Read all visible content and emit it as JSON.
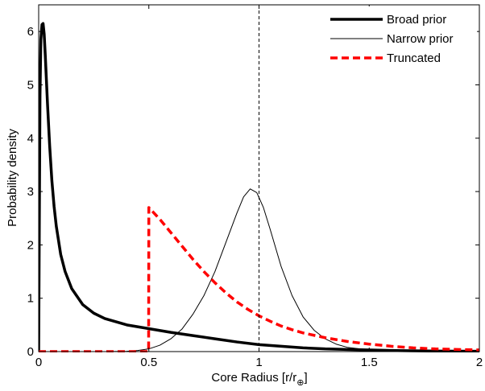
{
  "chart_data": {
    "type": "line",
    "title": "",
    "xlabel": "Core Radius [r/r",
    "xlabel_sub": "⊕",
    "xlabel_close": "]",
    "ylabel": "Probability density",
    "xlim": [
      0,
      2
    ],
    "ylim": [
      0,
      6.5
    ],
    "xticks": [
      0,
      0.5,
      1,
      1.5,
      2
    ],
    "xtick_labels": [
      "0",
      "0.5",
      "1",
      "1.5",
      "2"
    ],
    "yticks": [
      0,
      1,
      2,
      3,
      4,
      5,
      6
    ],
    "ytick_labels": [
      "0",
      "1",
      "2",
      "3",
      "4",
      "5",
      "6"
    ],
    "grid": false,
    "legend_position": "top-right",
    "reference_line": {
      "x": 1,
      "style": "dashed",
      "color": "#000000"
    },
    "series": [
      {
        "name": "Broad prior",
        "color": "#000000",
        "style": "solid-thick",
        "x": [
          0,
          0.003,
          0.006,
          0.01,
          0.015,
          0.02,
          0.025,
          0.03,
          0.035,
          0.04,
          0.05,
          0.06,
          0.07,
          0.08,
          0.1,
          0.12,
          0.15,
          0.2,
          0.25,
          0.3,
          0.4,
          0.5,
          0.6,
          0.7,
          0.8,
          0.9,
          1.0,
          1.1,
          1.2,
          1.3,
          1.4,
          1.5,
          1.6,
          1.8,
          2.0
        ],
        "y": [
          0,
          2.5,
          4.8,
          5.85,
          6.13,
          6.15,
          5.95,
          5.55,
          5.1,
          4.65,
          3.85,
          3.2,
          2.72,
          2.35,
          1.82,
          1.5,
          1.18,
          0.88,
          0.72,
          0.62,
          0.5,
          0.43,
          0.36,
          0.3,
          0.24,
          0.18,
          0.13,
          0.1,
          0.07,
          0.05,
          0.04,
          0.03,
          0.02,
          0.01,
          0.005
        ]
      },
      {
        "name": "Narrow prior",
        "color": "#000000",
        "style": "solid-thin",
        "x": [
          0,
          0.3,
          0.4,
          0.45,
          0.5,
          0.55,
          0.6,
          0.65,
          0.7,
          0.75,
          0.8,
          0.85,
          0.9,
          0.93,
          0.96,
          0.99,
          1.02,
          1.05,
          1.1,
          1.15,
          1.2,
          1.25,
          1.3,
          1.35,
          1.4,
          1.5,
          1.6,
          1.8,
          2.0
        ],
        "y": [
          0,
          0,
          0.005,
          0.02,
          0.05,
          0.12,
          0.24,
          0.42,
          0.7,
          1.05,
          1.5,
          2.05,
          2.6,
          2.9,
          3.05,
          2.98,
          2.7,
          2.3,
          1.6,
          1.05,
          0.65,
          0.4,
          0.24,
          0.14,
          0.08,
          0.03,
          0.01,
          0.002,
          0
        ]
      },
      {
        "name": "Truncated",
        "color": "#ff0000",
        "style": "dashed-thick",
        "x": [
          0,
          0.499,
          0.5,
          0.55,
          0.6,
          0.65,
          0.7,
          0.75,
          0.8,
          0.85,
          0.9,
          0.95,
          1.0,
          1.05,
          1.1,
          1.15,
          1.2,
          1.3,
          1.4,
          1.5,
          1.6,
          1.7,
          1.8,
          1.9,
          2.0
        ],
        "y": [
          0,
          0,
          2.7,
          2.48,
          2.23,
          1.98,
          1.73,
          1.5,
          1.29,
          1.1,
          0.93,
          0.79,
          0.67,
          0.57,
          0.48,
          0.41,
          0.35,
          0.26,
          0.19,
          0.14,
          0.1,
          0.07,
          0.05,
          0.04,
          0.03
        ]
      }
    ]
  }
}
